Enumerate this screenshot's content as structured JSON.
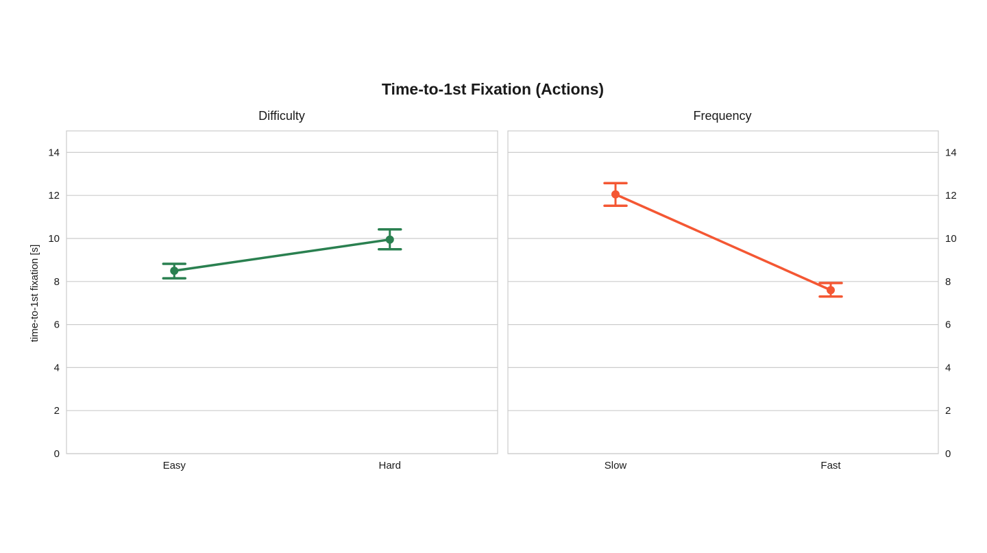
{
  "figure": {
    "title": "Time-to-1st Fixation (Actions)"
  },
  "chart_data": [
    {
      "type": "line",
      "title": "Difficulty",
      "xlabel": "",
      "ylabel": "time-to-1st fixation [s]",
      "ylim": [
        0,
        15
      ],
      "yticks": [
        0,
        2,
        4,
        6,
        8,
        10,
        12,
        14
      ],
      "ytick_labels": [
        "0",
        "2",
        "4",
        "6",
        "8",
        "10",
        "12",
        "14"
      ],
      "ytick_side": "left",
      "categories": [
        "Easy",
        "Hard"
      ],
      "grid": true,
      "series": [
        {
          "color": "#2a8050",
          "values": [
            8.5,
            9.95
          ],
          "error_low": [
            8.15,
            9.5
          ],
          "error_high": [
            8.82,
            10.42
          ]
        }
      ]
    },
    {
      "type": "line",
      "title": "Frequency",
      "xlabel": "",
      "ylabel": "",
      "ylim": [
        0,
        15
      ],
      "yticks": [
        0,
        2,
        4,
        6,
        8,
        10,
        12,
        14
      ],
      "ytick_labels": [
        "0",
        "2",
        "4",
        "6",
        "8",
        "10",
        "12",
        "14"
      ],
      "ytick_side": "right",
      "categories": [
        "Slow",
        "Fast"
      ],
      "grid": true,
      "series": [
        {
          "color": "#f45733",
          "values": [
            12.05,
            7.6
          ],
          "error_low": [
            11.52,
            7.3
          ],
          "error_high": [
            12.57,
            7.93
          ]
        }
      ]
    }
  ]
}
